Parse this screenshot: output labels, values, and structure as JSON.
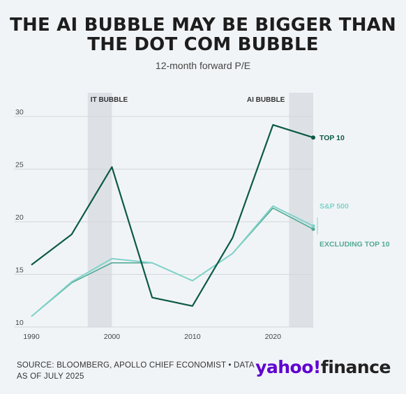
{
  "title_line1": "THE AI BUBBLE MAY BE BIGGER THAN",
  "title_line2": "THE DOT COM BUBBLE",
  "subtitle": "12-month forward P/E",
  "source": "SOURCE: BLOOMBERG, APOLLO CHIEF ECONOMIST • DATA AS OF JULY 2025",
  "brand": {
    "part1": "yahoo!",
    "part2": "finance"
  },
  "colors": {
    "top10": "#0b5a45",
    "sp500": "#7fd3c9",
    "excl": "#52a994",
    "band": "#dde1e5",
    "grid": "#d3d7db",
    "background": "#f1f4f7"
  },
  "chart_data": {
    "type": "line",
    "xlim": [
      1990,
      2025
    ],
    "ylim": [
      10,
      32
    ],
    "x_ticks": [
      1990,
      2000,
      2010,
      2020
    ],
    "y_ticks": [
      10,
      15,
      20,
      25,
      30
    ],
    "grid": "horizontal",
    "shaded_regions": [
      {
        "label": "IT BUBBLE",
        "from": 1997,
        "to": 2000
      },
      {
        "label": "AI BUBBLE",
        "from": 2022,
        "to": 2025
      }
    ],
    "series": [
      {
        "name": "TOP 10",
        "color": "#0b5a45",
        "x": [
          1990,
          1995,
          2000,
          2005,
          2010,
          2015,
          2020,
          2025
        ],
        "values": [
          15.9,
          18.8,
          25.2,
          12.8,
          12.0,
          18.5,
          29.2,
          28.0
        ]
      },
      {
        "name": "S&P 500",
        "color": "#7fd3c9",
        "x": [
          1990,
          1995,
          2000,
          2005,
          2010,
          2015,
          2020,
          2025
        ],
        "values": [
          11.0,
          14.3,
          16.5,
          16.1,
          14.4,
          17.0,
          21.5,
          19.6
        ]
      },
      {
        "name": "EXCLUDING TOP 10",
        "color": "#52a994",
        "x": [
          1990,
          1995,
          2000,
          2005,
          2010,
          2015,
          2020,
          2025
        ],
        "values": [
          11.0,
          14.2,
          16.1,
          16.1,
          14.4,
          17.0,
          21.3,
          19.3
        ]
      }
    ]
  }
}
